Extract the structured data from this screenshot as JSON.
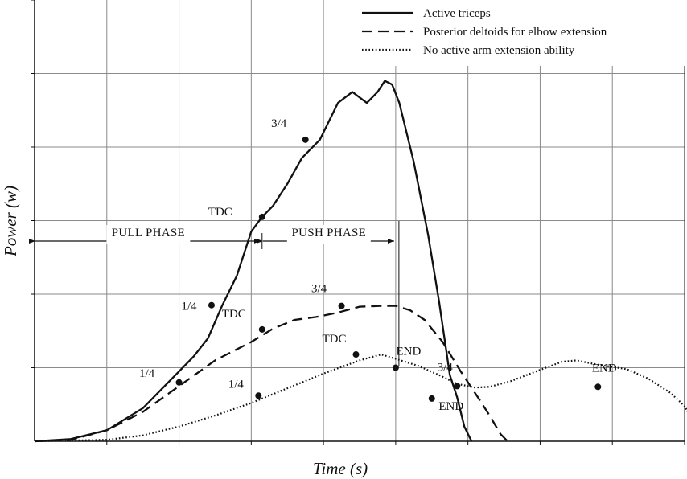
{
  "chart_data": {
    "type": "line",
    "xlabel": "Time (s)",
    "ylabel": "Power (w)",
    "xlim": [
      0,
      9
    ],
    "ylim": [
      0,
      6
    ],
    "grid": true,
    "legend_position": "top-right",
    "series": [
      {
        "name": "Active triceps",
        "style": "solid",
        "points": [
          [
            0,
            0
          ],
          [
            0.5,
            0.03
          ],
          [
            1,
            0.15
          ],
          [
            1.5,
            0.45
          ],
          [
            2,
            0.95
          ],
          [
            2.2,
            1.15
          ],
          [
            2.4,
            1.4
          ],
          [
            2.6,
            1.85
          ],
          [
            2.8,
            2.25
          ],
          [
            3,
            2.85
          ],
          [
            3.15,
            3.05
          ],
          [
            3.3,
            3.2
          ],
          [
            3.5,
            3.5
          ],
          [
            3.7,
            3.85
          ],
          [
            3.95,
            4.1
          ],
          [
            4.2,
            4.6
          ],
          [
            4.4,
            4.75
          ],
          [
            4.6,
            4.6
          ],
          [
            4.75,
            4.75
          ],
          [
            4.85,
            4.9
          ],
          [
            4.95,
            4.85
          ],
          [
            5.05,
            4.6
          ],
          [
            5.25,
            3.8
          ],
          [
            5.45,
            2.8
          ],
          [
            5.6,
            1.9
          ],
          [
            5.75,
            0.9
          ],
          [
            5.85,
            0.6
          ],
          [
            5.95,
            0.2
          ],
          [
            6.05,
            0
          ]
        ]
      },
      {
        "name": "Posterior deltoids for elbow extension",
        "style": "dashed",
        "points": [
          [
            0,
            0
          ],
          [
            0.5,
            0.02
          ],
          [
            1,
            0.15
          ],
          [
            1.5,
            0.4
          ],
          [
            2,
            0.75
          ],
          [
            2.5,
            1.1
          ],
          [
            3,
            1.35
          ],
          [
            3.3,
            1.53
          ],
          [
            3.6,
            1.65
          ],
          [
            3.9,
            1.69
          ],
          [
            4.2,
            1.75
          ],
          [
            4.5,
            1.83
          ],
          [
            4.8,
            1.84
          ],
          [
            5,
            1.84
          ],
          [
            5.2,
            1.78
          ],
          [
            5.4,
            1.65
          ],
          [
            5.65,
            1.35
          ],
          [
            5.9,
            0.95
          ],
          [
            6.15,
            0.58
          ],
          [
            6.3,
            0.35
          ],
          [
            6.45,
            0.1
          ],
          [
            6.55,
            0
          ]
        ]
      },
      {
        "name": "No active arm extension ability",
        "style": "dotted",
        "points": [
          [
            0,
            0
          ],
          [
            1,
            0.02
          ],
          [
            1.5,
            0.08
          ],
          [
            2,
            0.2
          ],
          [
            2.5,
            0.35
          ],
          [
            3,
            0.52
          ],
          [
            3.5,
            0.72
          ],
          [
            4,
            0.92
          ],
          [
            4.5,
            1.1
          ],
          [
            4.8,
            1.18
          ],
          [
            5,
            1.12
          ],
          [
            5.3,
            1.03
          ],
          [
            5.6,
            0.9
          ],
          [
            5.85,
            0.78
          ],
          [
            6.1,
            0.73
          ],
          [
            6.3,
            0.74
          ],
          [
            6.6,
            0.82
          ],
          [
            7,
            0.97
          ],
          [
            7.3,
            1.08
          ],
          [
            7.5,
            1.1
          ],
          [
            7.8,
            1.04
          ],
          [
            8.2,
            0.98
          ],
          [
            8.5,
            0.85
          ],
          [
            8.8,
            0.66
          ],
          [
            9,
            0.48
          ],
          [
            9.15,
            0.2
          ],
          [
            9.25,
            0
          ]
        ]
      }
    ],
    "markers": [
      {
        "series": 0,
        "x": 2.45,
        "y": 1.85,
        "label": "1/4",
        "dx": -28,
        "dy": 6
      },
      {
        "series": 0,
        "x": 3.15,
        "y": 3.05,
        "label": "TDC",
        "dx": -52,
        "dy": -2
      },
      {
        "series": 0,
        "x": 3.75,
        "y": 4.1,
        "label": "3/4",
        "dx": -33,
        "dy": -16
      },
      {
        "series": 1,
        "x": 2.0,
        "y": 0.8,
        "label": "1/4",
        "dx": -40,
        "dy": -7
      },
      {
        "series": 1,
        "x": 3.15,
        "y": 1.52,
        "label": "TDC",
        "dx": -35,
        "dy": -15
      },
      {
        "series": 1,
        "x": 4.25,
        "y": 1.84,
        "label": "3/4",
        "dx": -28,
        "dy": -17
      },
      {
        "series": 1,
        "x": 5.5,
        "y": 0.58,
        "label": "END",
        "dx": 24,
        "dy": 14
      },
      {
        "series": 2,
        "x": 3.1,
        "y": 0.62,
        "label": "1/4",
        "dx": -28,
        "dy": -10
      },
      {
        "series": 2,
        "x": 4.45,
        "y": 1.18,
        "label": "TDC",
        "dx": -27,
        "dy": -15
      },
      {
        "series": 2,
        "x": 5.0,
        "y": 1.0,
        "label": "END",
        "dx": 16,
        "dy": -16
      },
      {
        "series": 2,
        "x": 5.85,
        "y": 0.75,
        "label": "3/4",
        "dx": -15,
        "dy": -19
      },
      {
        "series": 2,
        "x": 7.8,
        "y": 0.74,
        "label": "END",
        "dx": 8,
        "dy": -19
      }
    ],
    "phases": [
      {
        "label": "PULL PHASE",
        "x_start": 0,
        "x_end": 3.15
      },
      {
        "label": "PUSH PHASE",
        "x_start": 3.15,
        "x_end": 5.0
      }
    ]
  }
}
